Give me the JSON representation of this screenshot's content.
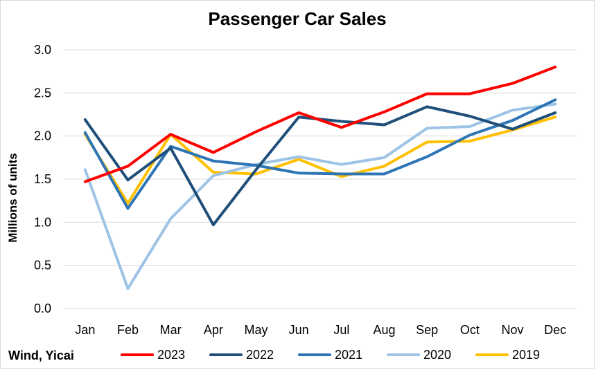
{
  "chart_data": {
    "type": "line",
    "title": "Passenger Car Sales",
    "ylabel": "Millions of units",
    "xlabel": "",
    "source": "Wind, Yicai",
    "categories": [
      "Jan",
      "Feb",
      "Mar",
      "Apr",
      "May",
      "Jun",
      "Jul",
      "Aug",
      "Sep",
      "Oct",
      "Nov",
      "Dec"
    ],
    "ylim": [
      0,
      3.0
    ],
    "yticks": [
      "0.0",
      "0.5",
      "1.0",
      "1.5",
      "2.0",
      "2.5",
      "3.0"
    ],
    "grid": true,
    "legend_position": "bottom",
    "series": [
      {
        "name": "2023",
        "color": "#ff0000",
        "values": [
          1.47,
          1.65,
          2.02,
          1.81,
          2.05,
          2.27,
          2.1,
          2.28,
          2.49,
          2.49,
          2.61,
          2.8
        ]
      },
      {
        "name": "2022",
        "color": "#1f4e79",
        "values": [
          2.19,
          1.49,
          1.86,
          0.97,
          1.61,
          2.22,
          2.17,
          2.13,
          2.34,
          2.23,
          2.08,
          2.27
        ]
      },
      {
        "name": "2021",
        "color": "#2e75b6",
        "values": [
          2.04,
          1.16,
          1.88,
          1.71,
          1.66,
          1.57,
          1.56,
          1.56,
          1.76,
          2.01,
          2.18,
          2.42
        ]
      },
      {
        "name": "2020",
        "color": "#9dc3e6",
        "values": [
          1.61,
          0.23,
          1.04,
          1.54,
          1.67,
          1.76,
          1.67,
          1.75,
          2.09,
          2.11,
          2.3,
          2.37
        ]
      },
      {
        "name": "2019",
        "color": "#ffc000",
        "values": [
          2.02,
          1.22,
          2.02,
          1.58,
          1.56,
          1.73,
          1.53,
          1.65,
          1.93,
          1.94,
          2.07,
          2.22
        ]
      }
    ]
  }
}
